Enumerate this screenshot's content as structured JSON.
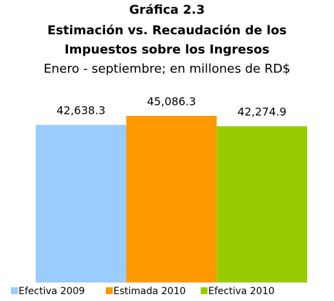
{
  "chart_data": {
    "type": "bar",
    "title": [
      "Gráfica 2.3",
      "Estimación vs. Recaudación de los",
      "Impuestos sobre los Ingresos"
    ],
    "subtitle": "Enero - septiembre; en millones de RD$",
    "categories": [
      null
    ],
    "series": [
      {
        "name": "Efectiva 2009",
        "color": "#99ccff",
        "values": [
          42638.3
        ],
        "value_labels": [
          "42,638.3"
        ]
      },
      {
        "name": "Estimada 2010",
        "color": "#ff9900",
        "values": [
          45086.3
        ],
        "value_labels": [
          "45,086.3"
        ]
      },
      {
        "name": "Efectiva 2010",
        "color": "#99cc00",
        "values": [
          42274.9
        ],
        "value_labels": [
          "42,274.9"
        ]
      }
    ],
    "legend": "bottom"
  }
}
